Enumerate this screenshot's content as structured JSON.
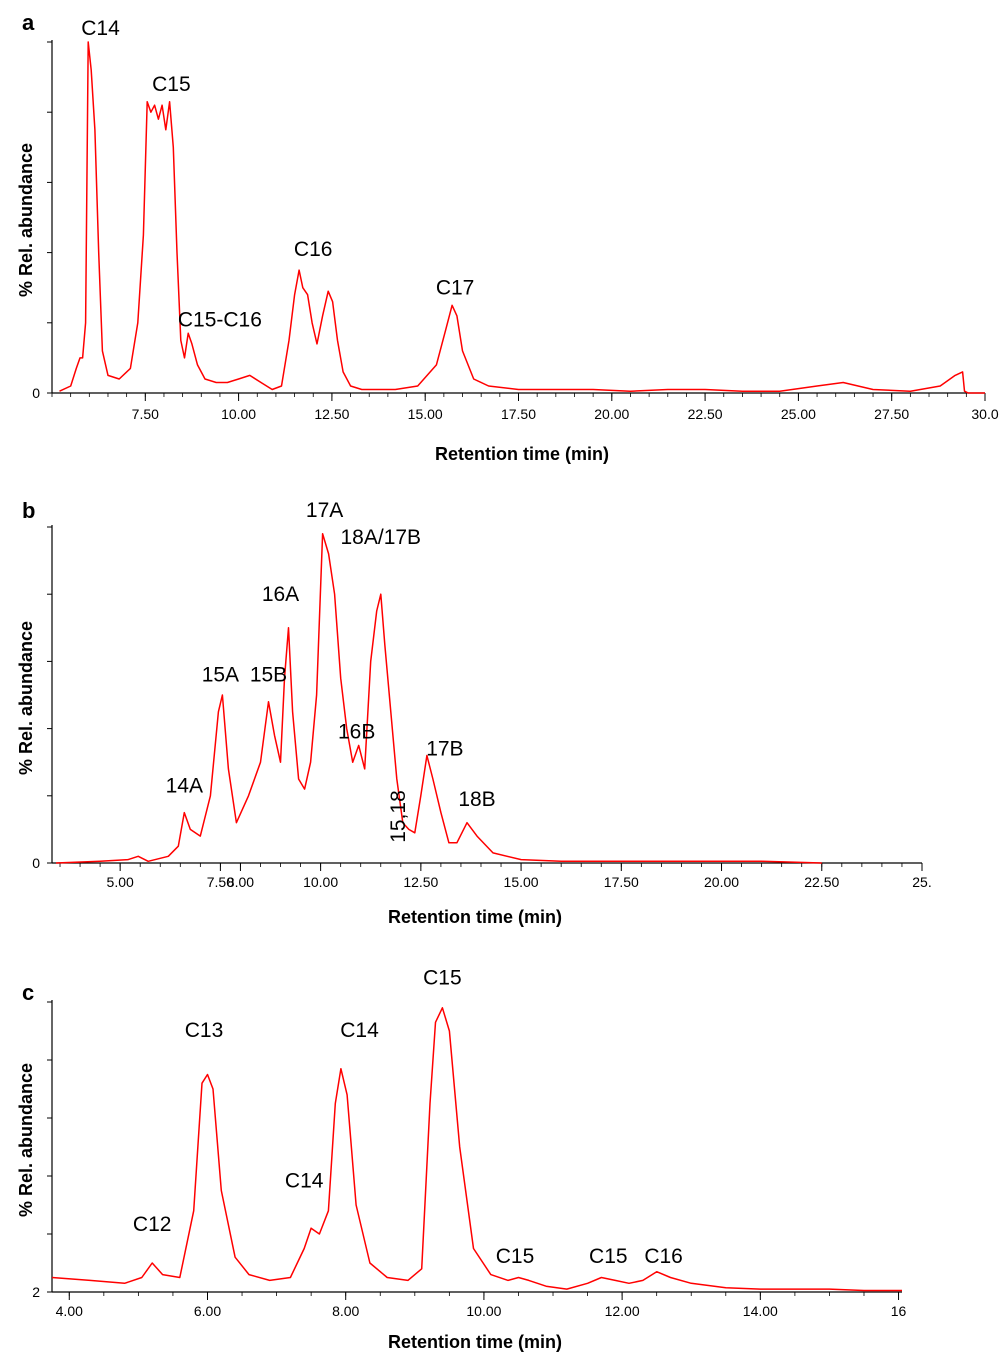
{
  "chart_data": [
    {
      "type": "line",
      "panel": "a",
      "xlabel": "Retention time (min)",
      "ylabel": "% Rel. abundance",
      "xlim": [
        5.0,
        30.0
      ],
      "ylim": [
        0,
        100
      ],
      "x_tick_labels": [
        "7.50",
        "10.00",
        "12.50",
        "15.00",
        "17.50",
        "20.00",
        "22.50",
        "25.00",
        "27.50",
        "30.0"
      ],
      "x_tick_values": [
        7.5,
        10,
        12.5,
        15,
        17.5,
        20,
        22.5,
        25,
        27.5,
        30
      ],
      "y_tick_labels": [
        "0"
      ],
      "series": [
        {
          "color": "#ff0000",
          "x": [
            5.2,
            5.5,
            5.65,
            5.75,
            5.82,
            5.9,
            5.97,
            6.05,
            6.15,
            6.25,
            6.35,
            6.5,
            6.8,
            7.1,
            7.3,
            7.45,
            7.55,
            7.65,
            7.75,
            7.85,
            7.95,
            8.05,
            8.15,
            8.25,
            8.35,
            8.45,
            8.55,
            8.65,
            8.75,
            8.9,
            9.1,
            9.4,
            9.7,
            10.0,
            10.3,
            10.6,
            10.9,
            11.15,
            11.35,
            11.5,
            11.62,
            11.72,
            11.85,
            11.97,
            12.1,
            12.25,
            12.4,
            12.52,
            12.65,
            12.8,
            13.0,
            13.3,
            13.6,
            14.2,
            14.8,
            15.3,
            15.55,
            15.72,
            15.85,
            16.0,
            16.3,
            16.7,
            17.5,
            18.5,
            19.5,
            20.5,
            21.5,
            22.5,
            23.5,
            24.5,
            25.5,
            26.2,
            27.0,
            28.0,
            28.8,
            29.2,
            29.4,
            29.45,
            29.55,
            29.7,
            30.0
          ],
          "y": [
            0.5,
            2,
            7,
            10,
            10,
            20,
            100,
            92,
            75,
            40,
            12,
            5,
            4,
            7,
            20,
            45,
            83,
            80,
            82,
            78,
            82,
            75,
            83,
            70,
            40,
            15,
            10,
            17,
            14,
            8,
            4,
            3,
            3,
            4,
            5,
            3,
            1,
            2,
            15,
            28,
            35,
            30,
            28,
            20,
            14,
            22,
            29,
            26,
            15,
            6,
            2,
            1,
            1,
            1,
            2,
            8,
            18,
            25,
            22,
            12,
            4,
            2,
            1,
            1,
            1,
            0.5,
            1,
            1,
            0.5,
            0.5,
            2,
            3,
            1,
            0.5,
            2,
            5,
            6,
            0.5,
            0,
            0,
            0
          ]
        }
      ],
      "annotations": [
        {
          "text": "C14",
          "x": 6.3,
          "y": 102
        },
        {
          "text": "C15",
          "x": 8.2,
          "y": 86
        },
        {
          "text": "C15-C16",
          "x": 9.5,
          "y": 19
        },
        {
          "text": "C16",
          "x": 12.0,
          "y": 39
        },
        {
          "text": "C17",
          "x": 15.8,
          "y": 28
        }
      ]
    },
    {
      "type": "line",
      "panel": "b",
      "xlabel": "Retention time (min)",
      "ylabel": "% Rel. abundance",
      "xlim": [
        3.3,
        25.0
      ],
      "ylim": [
        0,
        100
      ],
      "x_tick_labels": [
        "5.00",
        "7.50",
        "8.00",
        "10.00",
        "12.50",
        "15.00",
        "17.50",
        "20.00",
        "22.50",
        "25."
      ],
      "x_tick_values": [
        5,
        7.5,
        8,
        10,
        12.5,
        15,
        17.5,
        20,
        22.5,
        25
      ],
      "y_tick_labels": [
        "0"
      ],
      "series": [
        {
          "color": "#ff0000",
          "x": [
            3.4,
            4.5,
            5.2,
            5.45,
            5.7,
            6.2,
            6.45,
            6.6,
            6.75,
            7.0,
            7.25,
            7.45,
            7.55,
            7.7,
            7.9,
            8.2,
            8.5,
            8.7,
            8.85,
            9.0,
            9.1,
            9.2,
            9.3,
            9.45,
            9.6,
            9.75,
            9.9,
            10.05,
            10.2,
            10.35,
            10.5,
            10.65,
            10.8,
            10.95,
            11.1,
            11.25,
            11.4,
            11.5,
            11.6,
            11.75,
            11.9,
            12.05,
            12.2,
            12.35,
            12.5,
            12.65,
            12.8,
            13.0,
            13.2,
            13.4,
            13.65,
            13.9,
            14.3,
            15.0,
            16.0,
            17.5,
            19.0,
            21.0,
            22.5
          ],
          "y": [
            0,
            0.5,
            1,
            2,
            0.5,
            2,
            5,
            15,
            10,
            8,
            20,
            45,
            50,
            28,
            12,
            20,
            30,
            48,
            38,
            30,
            55,
            70,
            45,
            25,
            22,
            30,
            50,
            98,
            92,
            80,
            55,
            40,
            30,
            35,
            28,
            60,
            75,
            80,
            65,
            45,
            25,
            12,
            10,
            9,
            20,
            32,
            25,
            15,
            6,
            6,
            12,
            8,
            3,
            1,
            0.5,
            0.5,
            0.5,
            0.5,
            0
          ]
        }
      ],
      "annotations": [
        {
          "text": "14A",
          "x": 6.6,
          "y": 21
        },
        {
          "text": "15A",
          "x": 7.5,
          "y": 54
        },
        {
          "text": "15B",
          "x": 8.7,
          "y": 54
        },
        {
          "text": "16A",
          "x": 9.0,
          "y": 78
        },
        {
          "text": "17A",
          "x": 10.1,
          "y": 103
        },
        {
          "text": "18A/17B",
          "x": 11.5,
          "y": 95
        },
        {
          "text": "16B",
          "x": 10.9,
          "y": 37
        },
        {
          "text": "17B",
          "x": 13.1,
          "y": 32
        },
        {
          "text": "15,18",
          "x": 12.1,
          "y": 6
        },
        {
          "text": "18B",
          "x": 13.9,
          "y": 17
        }
      ]
    },
    {
      "type": "line",
      "panel": "c",
      "xlabel": "Retention time (min)",
      "ylabel": "% Rel. abundance",
      "xlim": [
        3.75,
        16.05
      ],
      "ylim": [
        0,
        100
      ],
      "x_tick_labels": [
        "4.00",
        "6.00",
        "8.00",
        "10.00",
        "12.00",
        "14.00",
        "16"
      ],
      "x_tick_values": [
        4,
        6,
        8,
        10,
        12,
        14,
        16
      ],
      "y_tick_labels": [
        "2"
      ],
      "series": [
        {
          "color": "#ff0000",
          "x": [
            3.75,
            4.3,
            4.8,
            5.05,
            5.2,
            5.35,
            5.6,
            5.8,
            5.92,
            6.0,
            6.08,
            6.2,
            6.4,
            6.6,
            6.9,
            7.2,
            7.4,
            7.5,
            7.62,
            7.75,
            7.85,
            7.93,
            8.02,
            8.15,
            8.35,
            8.6,
            8.9,
            9.1,
            9.22,
            9.3,
            9.4,
            9.5,
            9.65,
            9.85,
            10.1,
            10.35,
            10.5,
            10.65,
            10.9,
            11.2,
            11.5,
            11.7,
            11.9,
            12.1,
            12.3,
            12.5,
            12.7,
            13.0,
            13.5,
            14.0,
            14.5,
            15.0,
            15.5,
            16.05
          ],
          "y": [
            5,
            4,
            3,
            5,
            10,
            6,
            5,
            28,
            72,
            75,
            70,
            35,
            12,
            6,
            4,
            5,
            15,
            22,
            20,
            28,
            65,
            77,
            68,
            30,
            10,
            5,
            4,
            8,
            65,
            93,
            98,
            90,
            50,
            15,
            6,
            4,
            5,
            4,
            2,
            1,
            3,
            5,
            4,
            3,
            4,
            7,
            5,
            3,
            1.5,
            1,
            1,
            1,
            0.5,
            0.5
          ]
        }
      ],
      "annotations": [
        {
          "text": "C12",
          "x": 5.2,
          "y": 21
        },
        {
          "text": "C13",
          "x": 5.95,
          "y": 88
        },
        {
          "text": "C14",
          "x": 7.4,
          "y": 36
        },
        {
          "text": "C14",
          "x": 8.2,
          "y": 88
        },
        {
          "text": "C15",
          "x": 9.4,
          "y": 106
        },
        {
          "text": "C15",
          "x": 10.45,
          "y": 10
        },
        {
          "text": "C15",
          "x": 11.8,
          "y": 10
        },
        {
          "text": "C16",
          "x": 12.6,
          "y": 10
        }
      ]
    }
  ]
}
